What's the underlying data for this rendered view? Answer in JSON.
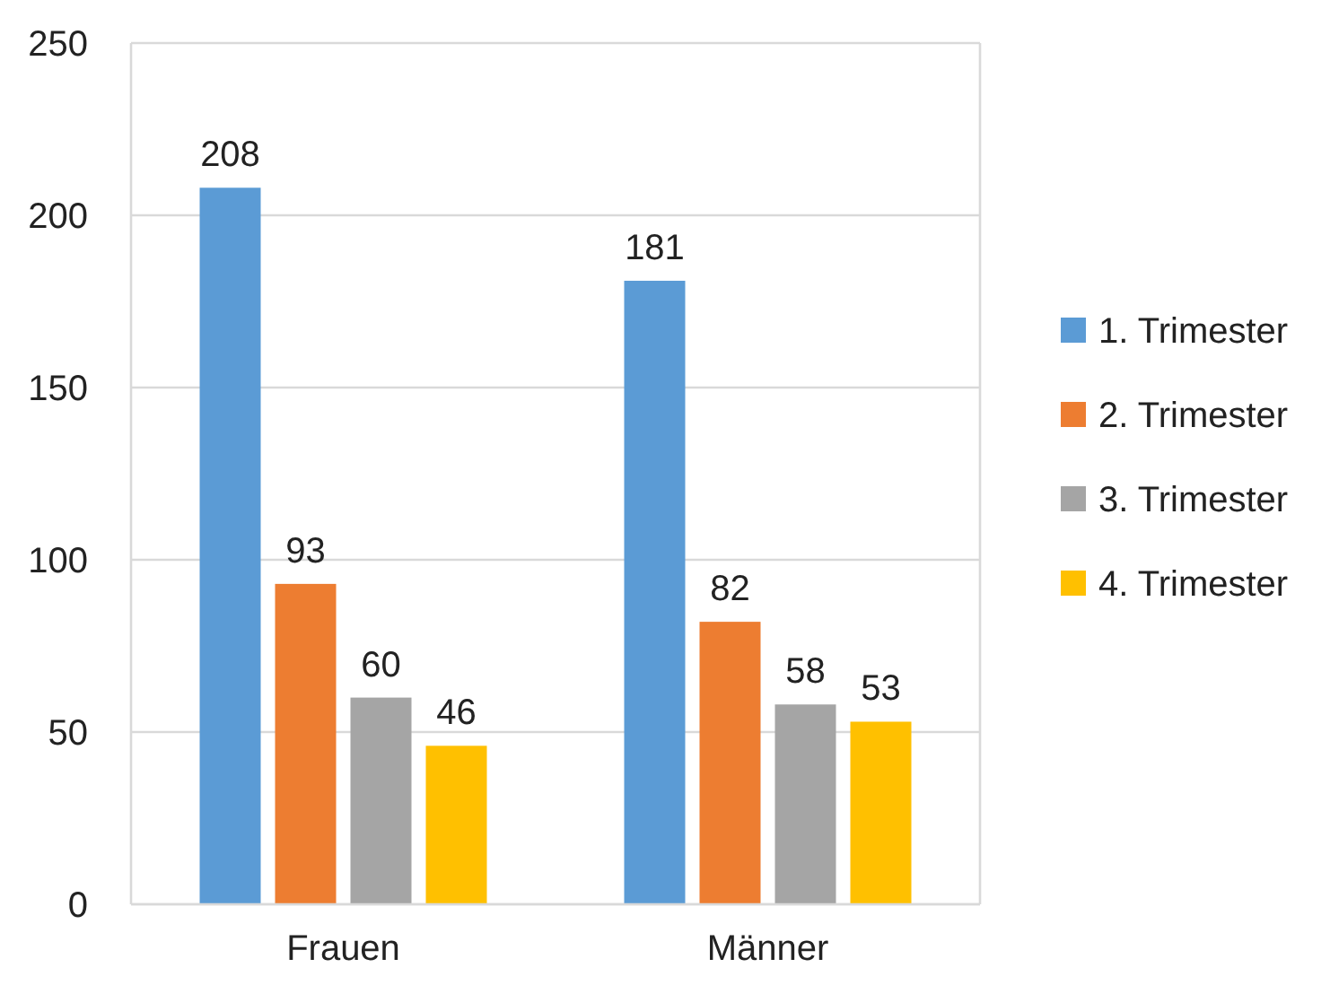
{
  "chart_data": {
    "type": "bar",
    "categories": [
      "Frauen",
      "Männer"
    ],
    "series": [
      {
        "name": "1. Trimester",
        "color": "#5b9bd5",
        "values": [
          208,
          181
        ]
      },
      {
        "name": "2. Trimester",
        "color": "#ed7d31",
        "values": [
          93,
          82
        ]
      },
      {
        "name": "3. Trimester",
        "color": "#a5a5a5",
        "values": [
          60,
          58
        ]
      },
      {
        "name": "4. Trimester",
        "color": "#ffc000",
        "values": [
          46,
          53
        ]
      }
    ],
    "ylim": [
      0,
      250
    ],
    "yticks": [
      0,
      50,
      100,
      150,
      200,
      250
    ],
    "grid": "y",
    "legend": "right",
    "data_labels": true
  }
}
